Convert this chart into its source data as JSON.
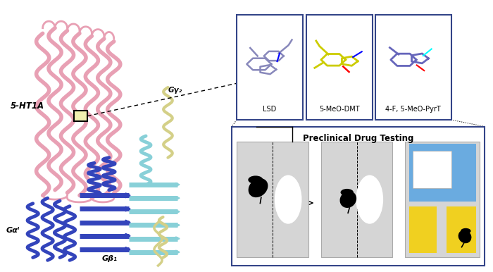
{
  "bg_color": "#ffffff",
  "fig_width": 7.0,
  "fig_height": 3.86,
  "dpi": 100,
  "label_5HT1A": "5-HT1A",
  "label_Gai": "Gαᴵ",
  "label_Gb1": "Gβ₁",
  "label_Gy2": "Gγ₂",
  "drug_labels": [
    "LSD",
    "5-MeO-DMT",
    "4-F, 5-MeO-PyrT"
  ],
  "preclinical_title": "Preclinical Drug Testing",
  "box_color": "#334488",
  "light_gray": "#d5d5d5",
  "blue_patch": "#6aabe0",
  "yellow_patch": "#f0d020",
  "pink": "#e8a0b4",
  "blue": "#3344bb",
  "cyan": "#88d0d8",
  "yellow_prot": "#d4d088"
}
